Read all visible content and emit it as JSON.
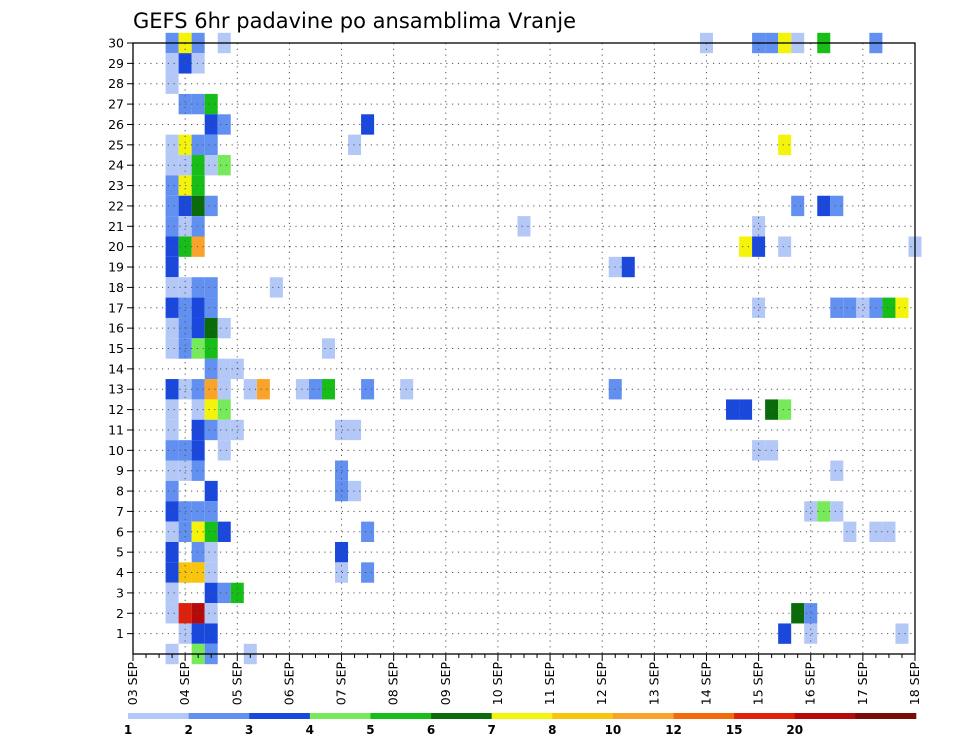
{
  "chart_data": {
    "type": "heatmap",
    "title": "GEFS 6hr padavine po ansamblima Vranje",
    "xlabel": "",
    "ylabel": "",
    "x_tick_labels": [
      "03 SEP",
      "04 SEP",
      "05 SEP",
      "06 SEP",
      "07 SEP",
      "08 SEP",
      "09 SEP",
      "10 SEP",
      "11 SEP",
      "12 SEP",
      "13 SEP",
      "14 SEP",
      "15 SEP",
      "16 SEP",
      "17 SEP",
      "18 SEP"
    ],
    "x_range_days": [
      0,
      15
    ],
    "y_tick_labels": [
      "1",
      "2",
      "3",
      "4",
      "5",
      "6",
      "7",
      "8",
      "9",
      "10",
      "11",
      "12",
      "13",
      "14",
      "15",
      "16",
      "17",
      "18",
      "19",
      "20",
      "21",
      "22",
      "23",
      "24",
      "25",
      "26",
      "27",
      "28",
      "29",
      "30"
    ],
    "y_range": [
      0,
      30
    ],
    "grid": true,
    "colorbar": {
      "position": "bottom",
      "labels": [
        "1",
        "2",
        "3",
        "4",
        "5",
        "6",
        "7",
        "8",
        "10",
        "12",
        "15",
        "20"
      ],
      "colors": [
        "#b4c8f7",
        "#6290f0",
        "#1a48dc",
        "#76ea5a",
        "#17be17",
        "#0a6b0a",
        "#f4f40a",
        "#f8c40c",
        "#f9a32a",
        "#f46a0a",
        "#e0200a",
        "#b40a0a",
        "#7d0909"
      ]
    },
    "cell_width_days": 0.25,
    "cells": [
      {
        "x": 0.75,
        "y": 30,
        "l": 1
      },
      {
        "x": 1.0,
        "y": 30,
        "l": 6
      },
      {
        "x": 1.25,
        "y": 30,
        "l": 1
      },
      {
        "x": 1.75,
        "y": 30,
        "l": 0
      },
      {
        "x": 11.0,
        "y": 30,
        "l": 0
      },
      {
        "x": 12.0,
        "y": 30,
        "l": 1
      },
      {
        "x": 12.25,
        "y": 30,
        "l": 1
      },
      {
        "x": 12.5,
        "y": 30,
        "l": 6
      },
      {
        "x": 12.75,
        "y": 30,
        "l": 0
      },
      {
        "x": 13.25,
        "y": 30,
        "l": 4
      },
      {
        "x": 14.25,
        "y": 30,
        "l": 1
      },
      {
        "x": 0.75,
        "y": 29,
        "l": 0
      },
      {
        "x": 1.0,
        "y": 29,
        "l": 2
      },
      {
        "x": 1.25,
        "y": 29,
        "l": 0
      },
      {
        "x": 0.75,
        "y": 28,
        "l": 0
      },
      {
        "x": 1.0,
        "y": 27,
        "l": 1
      },
      {
        "x": 1.25,
        "y": 27,
        "l": 1
      },
      {
        "x": 1.5,
        "y": 27,
        "l": 4
      },
      {
        "x": 1.5,
        "y": 26,
        "l": 2
      },
      {
        "x": 1.75,
        "y": 26,
        "l": 1
      },
      {
        "x": 4.5,
        "y": 26,
        "l": 2
      },
      {
        "x": 0.75,
        "y": 25,
        "l": 0
      },
      {
        "x": 1.0,
        "y": 25,
        "l": 6
      },
      {
        "x": 1.25,
        "y": 25,
        "l": 1
      },
      {
        "x": 1.5,
        "y": 25,
        "l": 1
      },
      {
        "x": 4.25,
        "y": 25,
        "l": 0
      },
      {
        "x": 12.5,
        "y": 25,
        "l": 6
      },
      {
        "x": 0.75,
        "y": 24,
        "l": 0
      },
      {
        "x": 1.0,
        "y": 24,
        "l": 0
      },
      {
        "x": 1.25,
        "y": 24,
        "l": 4
      },
      {
        "x": 1.5,
        "y": 24,
        "l": 0
      },
      {
        "x": 1.75,
        "y": 24,
        "l": 3
      },
      {
        "x": 0.75,
        "y": 23,
        "l": 1
      },
      {
        "x": 1.0,
        "y": 23,
        "l": 6
      },
      {
        "x": 1.25,
        "y": 23,
        "l": 4
      },
      {
        "x": 0.75,
        "y": 22,
        "l": 1
      },
      {
        "x": 1.0,
        "y": 22,
        "l": 2
      },
      {
        "x": 1.25,
        "y": 22,
        "l": 5
      },
      {
        "x": 1.5,
        "y": 22,
        "l": 1
      },
      {
        "x": 12.75,
        "y": 22,
        "l": 1
      },
      {
        "x": 13.25,
        "y": 22,
        "l": 2
      },
      {
        "x": 13.5,
        "y": 22,
        "l": 1
      },
      {
        "x": 0.75,
        "y": 21,
        "l": 1
      },
      {
        "x": 1.0,
        "y": 21,
        "l": 0
      },
      {
        "x": 1.25,
        "y": 21,
        "l": 1
      },
      {
        "x": 7.5,
        "y": 21,
        "l": 0
      },
      {
        "x": 12.0,
        "y": 21,
        "l": 0
      },
      {
        "x": 0.75,
        "y": 20,
        "l": 2
      },
      {
        "x": 1.0,
        "y": 20,
        "l": 4
      },
      {
        "x": 1.25,
        "y": 20,
        "l": 8
      },
      {
        "x": 11.75,
        "y": 20,
        "l": 6
      },
      {
        "x": 12.0,
        "y": 20,
        "l": 2
      },
      {
        "x": 12.5,
        "y": 20,
        "l": 0
      },
      {
        "x": 15.0,
        "y": 20,
        "l": 0
      },
      {
        "x": 0.75,
        "y": 19,
        "l": 2
      },
      {
        "x": 9.25,
        "y": 19,
        "l": 0
      },
      {
        "x": 9.5,
        "y": 19,
        "l": 2
      },
      {
        "x": 0.75,
        "y": 18,
        "l": 0
      },
      {
        "x": 1.0,
        "y": 18,
        "l": 0
      },
      {
        "x": 1.25,
        "y": 18,
        "l": 1
      },
      {
        "x": 1.5,
        "y": 18,
        "l": 1
      },
      {
        "x": 2.75,
        "y": 18,
        "l": 0
      },
      {
        "x": 0.75,
        "y": 17,
        "l": 2
      },
      {
        "x": 1.0,
        "y": 17,
        "l": 1
      },
      {
        "x": 1.25,
        "y": 17,
        "l": 2
      },
      {
        "x": 1.5,
        "y": 17,
        "l": 1
      },
      {
        "x": 12.0,
        "y": 17,
        "l": 0
      },
      {
        "x": 13.5,
        "y": 17,
        "l": 1
      },
      {
        "x": 13.75,
        "y": 17,
        "l": 1
      },
      {
        "x": 14.0,
        "y": 17,
        "l": 0
      },
      {
        "x": 14.25,
        "y": 17,
        "l": 1
      },
      {
        "x": 14.5,
        "y": 17,
        "l": 4
      },
      {
        "x": 14.75,
        "y": 17,
        "l": 6
      },
      {
        "x": 0.75,
        "y": 16,
        "l": 0
      },
      {
        "x": 1.0,
        "y": 16,
        "l": 1
      },
      {
        "x": 1.25,
        "y": 16,
        "l": 2
      },
      {
        "x": 1.5,
        "y": 16,
        "l": 5
      },
      {
        "x": 1.75,
        "y": 16,
        "l": 0
      },
      {
        "x": 0.75,
        "y": 15,
        "l": 0
      },
      {
        "x": 1.0,
        "y": 15,
        "l": 1
      },
      {
        "x": 1.25,
        "y": 15,
        "l": 3
      },
      {
        "x": 1.5,
        "y": 15,
        "l": 4
      },
      {
        "x": 3.75,
        "y": 15,
        "l": 0
      },
      {
        "x": 1.5,
        "y": 14,
        "l": 1
      },
      {
        "x": 1.75,
        "y": 14,
        "l": 0
      },
      {
        "x": 2.0,
        "y": 14,
        "l": 0
      },
      {
        "x": 0.75,
        "y": 13,
        "l": 2
      },
      {
        "x": 1.0,
        "y": 13,
        "l": 0
      },
      {
        "x": 1.25,
        "y": 13,
        "l": 1
      },
      {
        "x": 1.5,
        "y": 13,
        "l": 8
      },
      {
        "x": 1.75,
        "y": 13,
        "l": 0
      },
      {
        "x": 2.25,
        "y": 13,
        "l": 0
      },
      {
        "x": 2.5,
        "y": 13,
        "l": 8
      },
      {
        "x": 3.25,
        "y": 13,
        "l": 0
      },
      {
        "x": 3.5,
        "y": 13,
        "l": 1
      },
      {
        "x": 3.75,
        "y": 13,
        "l": 4
      },
      {
        "x": 4.5,
        "y": 13,
        "l": 1
      },
      {
        "x": 5.25,
        "y": 13,
        "l": 0
      },
      {
        "x": 9.25,
        "y": 13,
        "l": 1
      },
      {
        "x": 0.75,
        "y": 12,
        "l": 0
      },
      {
        "x": 1.25,
        "y": 12,
        "l": 0
      },
      {
        "x": 1.5,
        "y": 12,
        "l": 6
      },
      {
        "x": 1.75,
        "y": 12,
        "l": 3
      },
      {
        "x": 11.5,
        "y": 12,
        "l": 2
      },
      {
        "x": 11.75,
        "y": 12,
        "l": 2
      },
      {
        "x": 12.25,
        "y": 12,
        "l": 5
      },
      {
        "x": 12.5,
        "y": 12,
        "l": 3
      },
      {
        "x": 0.75,
        "y": 11,
        "l": 0
      },
      {
        "x": 1.25,
        "y": 11,
        "l": 2
      },
      {
        "x": 1.5,
        "y": 11,
        "l": 1
      },
      {
        "x": 1.75,
        "y": 11,
        "l": 0
      },
      {
        "x": 2.0,
        "y": 11,
        "l": 0
      },
      {
        "x": 4.0,
        "y": 11,
        "l": 0
      },
      {
        "x": 4.25,
        "y": 11,
        "l": 0
      },
      {
        "x": 0.75,
        "y": 10,
        "l": 1
      },
      {
        "x": 1.0,
        "y": 10,
        "l": 1
      },
      {
        "x": 1.25,
        "y": 10,
        "l": 2
      },
      {
        "x": 1.75,
        "y": 10,
        "l": 0
      },
      {
        "x": 12.0,
        "y": 10,
        "l": 0
      },
      {
        "x": 12.25,
        "y": 10,
        "l": 0
      },
      {
        "x": 0.75,
        "y": 9,
        "l": 0
      },
      {
        "x": 1.0,
        "y": 9,
        "l": 0
      },
      {
        "x": 1.25,
        "y": 9,
        "l": 1
      },
      {
        "x": 4.0,
        "y": 9,
        "l": 1
      },
      {
        "x": 13.5,
        "y": 9,
        "l": 0
      },
      {
        "x": 0.75,
        "y": 8,
        "l": 1
      },
      {
        "x": 1.5,
        "y": 8,
        "l": 2
      },
      {
        "x": 4.0,
        "y": 8,
        "l": 1
      },
      {
        "x": 4.25,
        "y": 8,
        "l": 0
      },
      {
        "x": 0.75,
        "y": 7,
        "l": 2
      },
      {
        "x": 1.0,
        "y": 7,
        "l": 1
      },
      {
        "x": 1.25,
        "y": 7,
        "l": 1
      },
      {
        "x": 1.5,
        "y": 7,
        "l": 1
      },
      {
        "x": 13.0,
        "y": 7,
        "l": 0
      },
      {
        "x": 13.25,
        "y": 7,
        "l": 3
      },
      {
        "x": 13.5,
        "y": 7,
        "l": 0
      },
      {
        "x": 0.75,
        "y": 6,
        "l": 0
      },
      {
        "x": 1.0,
        "y": 6,
        "l": 1
      },
      {
        "x": 1.25,
        "y": 6,
        "l": 6
      },
      {
        "x": 1.5,
        "y": 6,
        "l": 4
      },
      {
        "x": 1.75,
        "y": 6,
        "l": 2
      },
      {
        "x": 4.5,
        "y": 6,
        "l": 1
      },
      {
        "x": 13.75,
        "y": 6,
        "l": 0
      },
      {
        "x": 14.25,
        "y": 6,
        "l": 0
      },
      {
        "x": 14.5,
        "y": 6,
        "l": 0
      },
      {
        "x": 0.75,
        "y": 5,
        "l": 2
      },
      {
        "x": 1.25,
        "y": 5,
        "l": 1
      },
      {
        "x": 1.5,
        "y": 5,
        "l": 0
      },
      {
        "x": 4.0,
        "y": 5,
        "l": 2
      },
      {
        "x": 0.75,
        "y": 4,
        "l": 2
      },
      {
        "x": 1.0,
        "y": 4,
        "l": 7
      },
      {
        "x": 1.25,
        "y": 4,
        "l": 7
      },
      {
        "x": 1.5,
        "y": 4,
        "l": 0
      },
      {
        "x": 4.0,
        "y": 4,
        "l": 0
      },
      {
        "x": 4.5,
        "y": 4,
        "l": 1
      },
      {
        "x": 0.75,
        "y": 3,
        "l": 0
      },
      {
        "x": 1.5,
        "y": 3,
        "l": 2
      },
      {
        "x": 1.75,
        "y": 3,
        "l": 1
      },
      {
        "x": 2.0,
        "y": 3,
        "l": 4
      },
      {
        "x": 0.75,
        "y": 2,
        "l": 0
      },
      {
        "x": 1.0,
        "y": 2,
        "l": 10
      },
      {
        "x": 1.25,
        "y": 2,
        "l": 11
      },
      {
        "x": 1.5,
        "y": 2,
        "l": 0
      },
      {
        "x": 12.75,
        "y": 2,
        "l": 5
      },
      {
        "x": 13.0,
        "y": 2,
        "l": 1
      },
      {
        "x": 1.0,
        "y": 1,
        "l": 0
      },
      {
        "x": 1.25,
        "y": 1,
        "l": 2
      },
      {
        "x": 1.5,
        "y": 1,
        "l": 2
      },
      {
        "x": 12.5,
        "y": 1,
        "l": 2
      },
      {
        "x": 13.0,
        "y": 1,
        "l": 0
      },
      {
        "x": 14.75,
        "y": 1,
        "l": 0
      },
      {
        "x": 0.75,
        "y": 0,
        "l": 0
      },
      {
        "x": 1.25,
        "y": 0,
        "l": 3
      },
      {
        "x": 1.5,
        "y": 0,
        "l": 1
      },
      {
        "x": 2.25,
        "y": 0,
        "l": 0
      }
    ]
  }
}
